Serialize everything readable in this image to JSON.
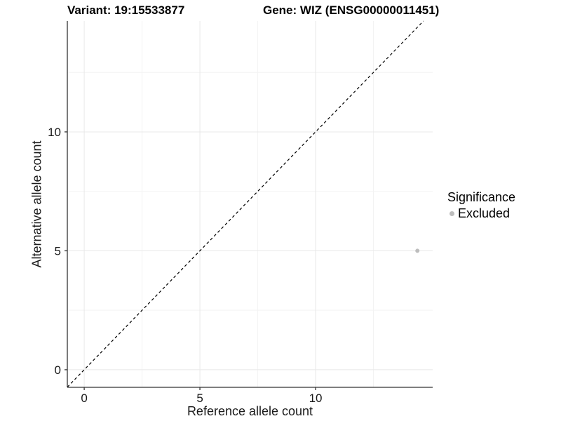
{
  "titles": {
    "variant": "Variant: 19:15533877",
    "gene": "Gene: WIZ (ENSG00000011451)"
  },
  "legend": {
    "title": "Significance",
    "items": [
      {
        "label": "Excluded",
        "color": "#bdbdbd",
        "marker": "circle-icon"
      }
    ]
  },
  "chart_data": {
    "type": "scatter",
    "title": "Variant: 19:15533877 | Gene: WIZ (ENSG00000011451)",
    "xlabel": "Reference allele count",
    "ylabel": "Alternative allele count",
    "xlim": [
      -0.73,
      15.06
    ],
    "ylim": [
      -0.74,
      14.66
    ],
    "x_major_ticks": [
      0,
      5,
      10
    ],
    "y_major_ticks": [
      0,
      5,
      10
    ],
    "x_minor_ticks": [
      2.5,
      7.5,
      12.5
    ],
    "y_minor_ticks": [
      2.5,
      7.5,
      12.5
    ],
    "grid": true,
    "legend_position": "right",
    "series": [
      {
        "name": "Excluded",
        "color": "#bdbdbd",
        "point_radius": 3,
        "points": [
          {
            "x": 14.4,
            "y": 5
          }
        ]
      }
    ],
    "reference_line": {
      "type": "identity y=x",
      "style": "dashed",
      "color": "#000000"
    }
  },
  "colors": {
    "background": "#ffffff",
    "grid_major": "#e8e8e8",
    "grid_minor": "#f3f3f3",
    "axis_line": "#333333",
    "tick_mark": "#333333",
    "tick_label": "#1a1a1a",
    "title_text": "#000000",
    "excluded_point": "#bdbdbd"
  }
}
